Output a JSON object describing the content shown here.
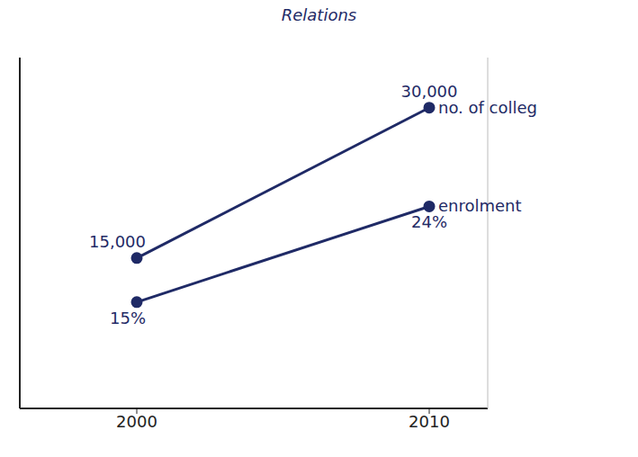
{
  "chart_data": {
    "type": "line",
    "title": "Relations",
    "x": [
      2000,
      2010
    ],
    "xlim": [
      1996,
      2012
    ],
    "xticks": [
      2000,
      2010
    ],
    "ylim": [
      0,
      35000
    ],
    "y2lim": [
      5,
      38
    ],
    "tick_labels": "x",
    "grid": false,
    "data_labels": true,
    "series": [
      {
        "name": "no. of colleg",
        "color": "#1f2a66",
        "marker": "circle",
        "values": [
          15000,
          30000
        ],
        "value_labels": [
          "15,000",
          "30,000"
        ]
      },
      {
        "name": "enrolment",
        "color": "#1f2a66",
        "marker": "circle",
        "axis": "y2",
        "values": [
          15,
          24
        ],
        "value_labels": [
          "15%",
          "24%"
        ]
      }
    ]
  }
}
